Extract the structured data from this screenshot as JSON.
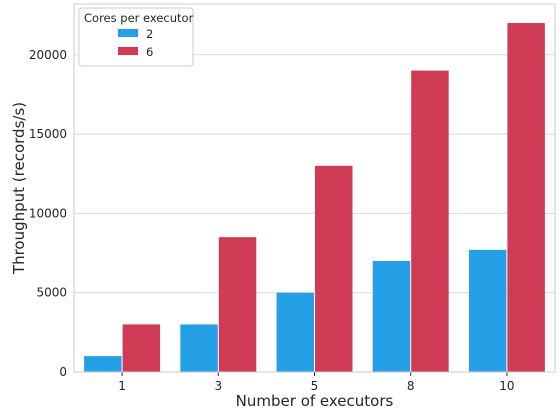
{
  "chart_data": {
    "type": "bar",
    "title": "",
    "xlabel": "Number of executors",
    "ylabel": "Throughput (records/s)",
    "categories": [
      "1",
      "3",
      "5",
      "8",
      "10"
    ],
    "series": [
      {
        "name": "2",
        "color": "#259fe6",
        "values": [
          1000,
          3000,
          5000,
          7000,
          7700
        ]
      },
      {
        "name": "6",
        "color": "#cf3a54",
        "values": [
          3000,
          8500,
          13000,
          19000,
          22000
        ]
      }
    ],
    "ylim": [
      0,
      23200
    ],
    "yticks": [
      0,
      5000,
      10000,
      15000,
      20000
    ],
    "grid": true,
    "legend": {
      "title": "Cores per executor",
      "position": "top-left"
    }
  }
}
